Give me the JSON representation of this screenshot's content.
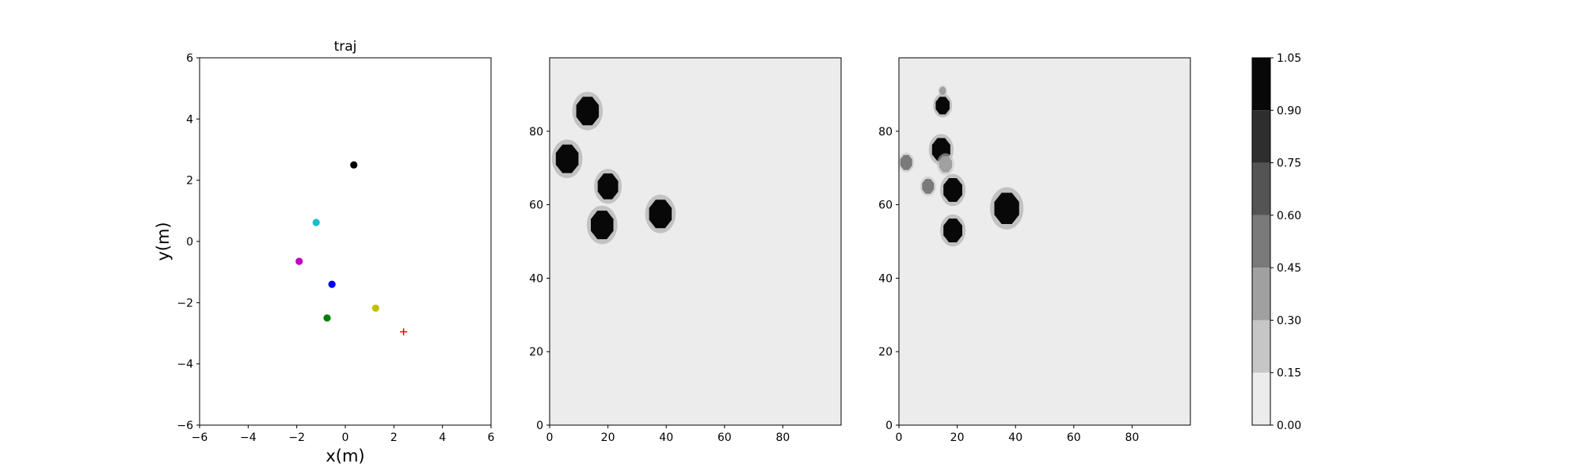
{
  "chart_data": [
    {
      "type": "scatter",
      "title": "traj",
      "xlabel": "x(m)",
      "ylabel": "y(m)",
      "xlim": [
        -6,
        6
      ],
      "ylim": [
        -6,
        6
      ],
      "xticks": [
        "−6",
        "−4",
        "−2",
        "0",
        "2",
        "4",
        "6"
      ],
      "yticks": [
        "−6",
        "−4",
        "−2",
        "0",
        "2",
        "4",
        "6"
      ],
      "grid": false,
      "points": [
        {
          "x": 0.35,
          "y": 2.5,
          "color": "#000000",
          "marker": "circle"
        },
        {
          "x": -1.2,
          "y": 0.62,
          "color": "#17becf",
          "marker": "circle"
        },
        {
          "x": -1.9,
          "y": -0.65,
          "color": "#bf00bf",
          "marker": "circle"
        },
        {
          "x": -0.55,
          "y": -1.4,
          "color": "#0000ff",
          "marker": "circle"
        },
        {
          "x": 1.25,
          "y": -2.18,
          "color": "#bfbf00",
          "marker": "circle"
        },
        {
          "x": -0.75,
          "y": -2.5,
          "color": "#008000",
          "marker": "circle"
        },
        {
          "x": 2.4,
          "y": -2.95,
          "color": "#ff0000",
          "marker": "plus"
        }
      ]
    },
    {
      "type": "heatmap",
      "xlim": [
        0,
        100
      ],
      "ylim": [
        0,
        100
      ],
      "xticks": [
        0,
        20,
        40,
        60,
        80
      ],
      "yticks": [
        0,
        20,
        40,
        60,
        80
      ],
      "background_value": 0.08,
      "blobs": [
        {
          "x": 13,
          "y": 85.5,
          "r": 4.2,
          "value": 1.0
        },
        {
          "x": 6,
          "y": 72.5,
          "r": 4.2,
          "value": 1.0
        },
        {
          "x": 20,
          "y": 65,
          "r": 3.8,
          "value": 1.0
        },
        {
          "x": 18,
          "y": 54.5,
          "r": 4.2,
          "value": 1.0
        },
        {
          "x": 38,
          "y": 57.5,
          "r": 4.2,
          "value": 1.0
        }
      ]
    },
    {
      "type": "heatmap",
      "xlim": [
        0,
        100
      ],
      "ylim": [
        0,
        100
      ],
      "xticks": [
        0,
        20,
        40,
        60,
        80
      ],
      "yticks": [
        0,
        20,
        40,
        60,
        80
      ],
      "background_value": 0.08,
      "blobs": [
        {
          "x": 15,
          "y": 87,
          "r": 2.6,
          "value": 1.0
        },
        {
          "x": 15,
          "y": 91,
          "r": 1.2,
          "value": 0.3
        },
        {
          "x": 14.5,
          "y": 75,
          "r": 3.4,
          "value": 1.0
        },
        {
          "x": 16,
          "y": 71,
          "r": 2.4,
          "value": 0.4
        },
        {
          "x": 2.5,
          "y": 71.5,
          "r": 2.2,
          "value": 0.45
        },
        {
          "x": 10,
          "y": 65,
          "r": 2.2,
          "value": 0.5
        },
        {
          "x": 18.5,
          "y": 64,
          "r": 3.5,
          "value": 1.0
        },
        {
          "x": 18.5,
          "y": 53,
          "r": 3.5,
          "value": 1.0
        },
        {
          "x": 37,
          "y": 59,
          "r": 4.6,
          "value": 1.0
        }
      ]
    },
    {
      "type": "colorbar",
      "levels": [
        0.0,
        0.15,
        0.3,
        0.45,
        0.6,
        0.75,
        0.9,
        1.05
      ],
      "level_labels": [
        "0.00",
        "0.15",
        "0.30",
        "0.45",
        "0.60",
        "0.75",
        "0.90",
        "1.05"
      ],
      "colors": [
        "#ececec",
        "#c6c6c6",
        "#a0a0a0",
        "#7a7a7a",
        "#545454",
        "#2e2e2e",
        "#080808"
      ]
    }
  ]
}
